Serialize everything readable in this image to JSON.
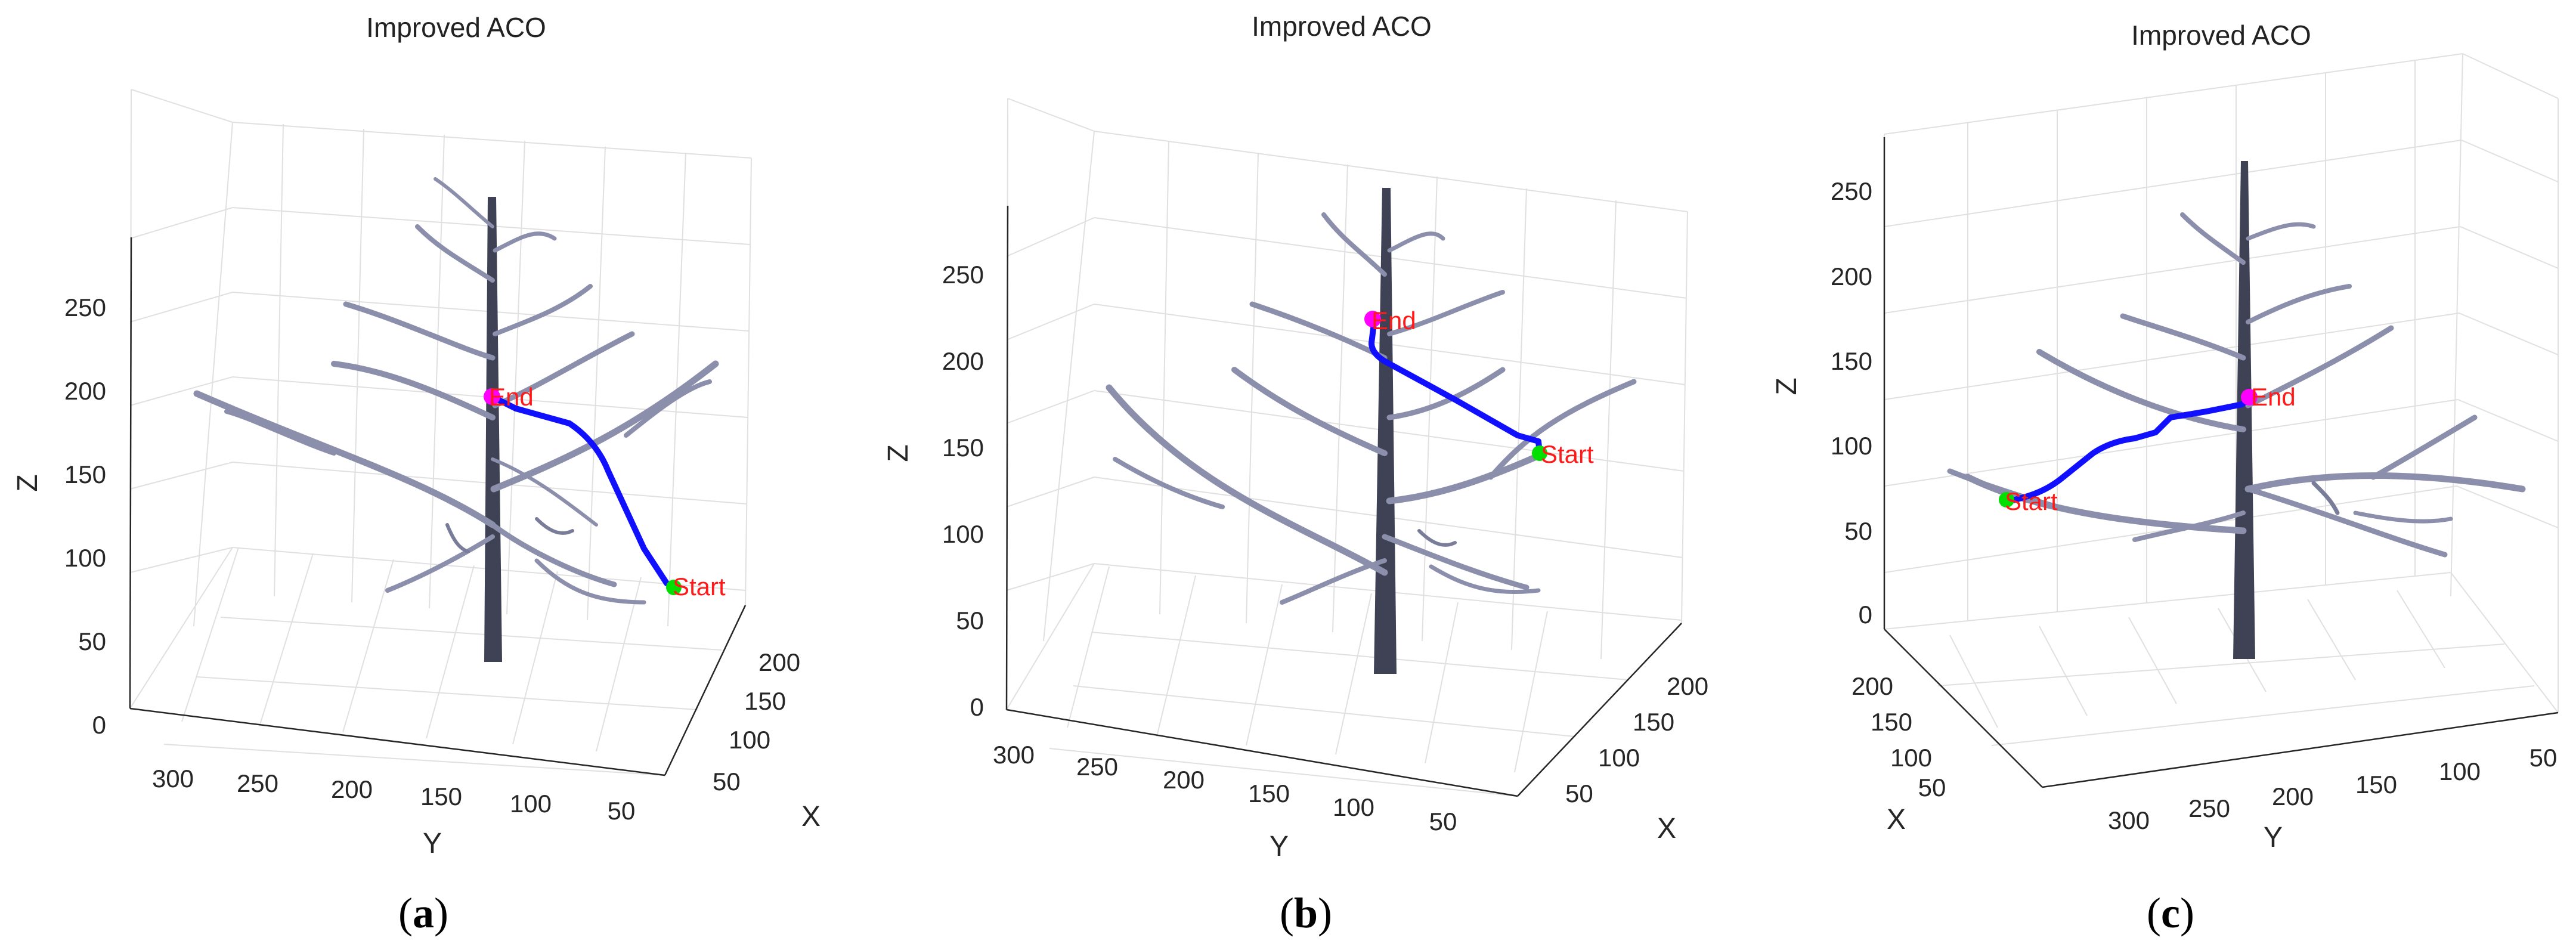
{
  "chart_data": [
    {
      "type": "line",
      "panel": "(a)",
      "title": "Improved ACO",
      "xlabel": "X",
      "ylabel": "Y",
      "zlabel": "Z",
      "x_ticks": [
        "50",
        "100",
        "150",
        "200"
      ],
      "y_ticks": [
        "300",
        "250",
        "200",
        "150",
        "100",
        "50"
      ],
      "z_ticks": [
        "0",
        "50",
        "100",
        "150",
        "200",
        "250"
      ],
      "zlim": [
        0,
        280
      ],
      "series": [
        {
          "name": "Start",
          "color": "#00e000"
        },
        {
          "name": "End",
          "color": "#ff00ff"
        }
      ],
      "path_color": "#0000ff"
    },
    {
      "type": "line",
      "panel": "(b)",
      "title": "Improved ACO",
      "xlabel": "X",
      "ylabel": "Y",
      "zlabel": "Z",
      "x_ticks": [
        "50",
        "100",
        "150",
        "200"
      ],
      "y_ticks": [
        "300",
        "250",
        "200",
        "150",
        "100",
        "50"
      ],
      "z_ticks": [
        "0",
        "50",
        "100",
        "150",
        "200",
        "250"
      ],
      "zlim": [
        0,
        280
      ],
      "series": [
        {
          "name": "Start",
          "color": "#00e000"
        },
        {
          "name": "End",
          "color": "#ff00ff"
        }
      ],
      "path_color": "#0000ff"
    },
    {
      "type": "line",
      "panel": "(c)",
      "title": "Improved ACO",
      "xlabel": "X",
      "ylabel": "Y",
      "zlabel": "Z",
      "x_ticks": [
        "200",
        "150",
        "100",
        "50"
      ],
      "y_ticks": [
        "300",
        "250",
        "200",
        "150",
        "100",
        "50"
      ],
      "z_ticks": [
        "0",
        "50",
        "100",
        "150",
        "200",
        "250"
      ],
      "zlim": [
        0,
        280
      ],
      "series": [
        {
          "name": "Start",
          "color": "#00e000"
        },
        {
          "name": "End",
          "color": "#ff00ff"
        }
      ],
      "path_color": "#0000ff"
    }
  ],
  "captions": [
    {
      "open": "(",
      "letter": "a",
      "close": ")"
    },
    {
      "open": "(",
      "letter": "b",
      "close": ")"
    },
    {
      "open": "(",
      "letter": "c",
      "close": ")"
    }
  ]
}
